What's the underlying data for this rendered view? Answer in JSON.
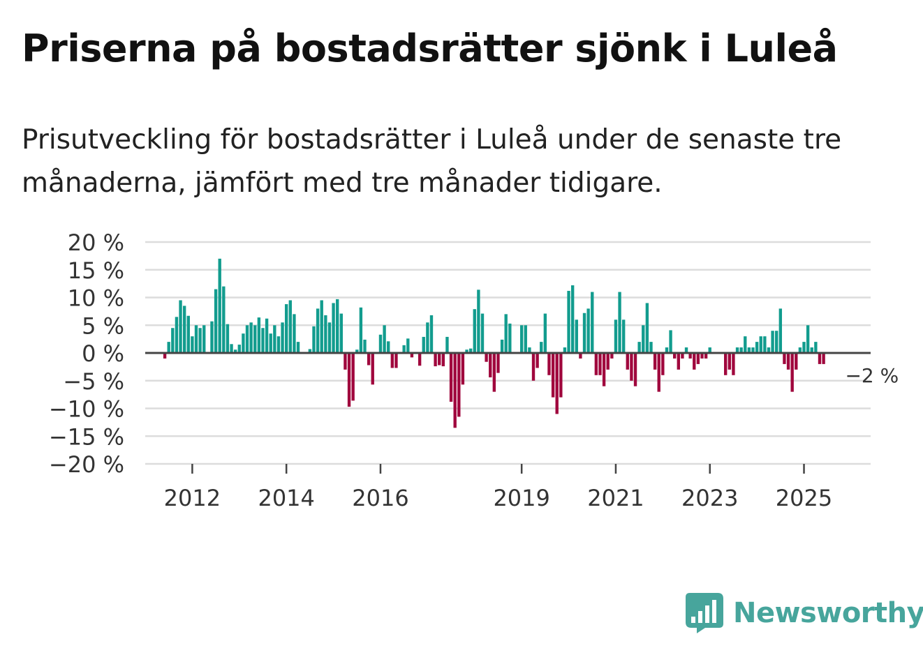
{
  "title": "Priserna på bostadsrätter sjönk i Luleå",
  "subtitle": "Prisutveckling för bostadsrätter i Luleå under de senaste tre månaderna, jämfört med tre månader tidigare.",
  "chart_data": {
    "type": "bar",
    "title": "Priserna på bostadsrätter sjönk i Luleå",
    "subtitle": "Prisutveckling för bostadsrätter i Luleå under de senaste tre månaderna, jämfört med tre månader tidigare.",
    "xlabel": "",
    "ylabel": "",
    "unit": "%",
    "ylim": [
      -20,
      20
    ],
    "yticks": [
      20,
      15,
      10,
      5,
      0,
      -5,
      -10,
      -15,
      -20
    ],
    "ytick_labels": [
      "20 %",
      "15 %",
      "10 %",
      "5 %",
      "0 %",
      "−5 %",
      "−10 %",
      "−15 %",
      "−20 %"
    ],
    "x_start": "2011-01",
    "x_end": "2026-06",
    "xticks": [
      {
        "label": "2012",
        "month": "2012-01"
      },
      {
        "label": "2014",
        "month": "2014-01"
      },
      {
        "label": "2016",
        "month": "2016-01"
      },
      {
        "label": "2019",
        "month": "2019-01"
      },
      {
        "label": "2021",
        "month": "2021-01"
      },
      {
        "label": "2023",
        "month": "2023-01"
      },
      {
        "label": "2025",
        "month": "2025-01"
      }
    ],
    "first_month": "2011-06",
    "values": [
      -1,
      2,
      4.5,
      6.5,
      9.5,
      8.5,
      6.7,
      3,
      5,
      4.5,
      5,
      0,
      5.7,
      11.5,
      17,
      12,
      5.2,
      1.6,
      0.6,
      1.5,
      3.5,
      5,
      5.5,
      5,
      6.4,
      4.5,
      6.2,
      3.5,
      5,
      3,
      5.5,
      8.8,
      9.5,
      7,
      2,
      0,
      0,
      0.7,
      4.8,
      8,
      9.5,
      6.8,
      5.5,
      9,
      9.7,
      7.1,
      -3,
      -9.7,
      -8.6,
      0.6,
      8.2,
      2.4,
      -2.2,
      -5.7,
      0,
      3.3,
      5,
      2.1,
      -2.7,
      -2.7,
      0,
      1.4,
      2.6,
      -0.8,
      0,
      -2.3,
      2.9,
      5.5,
      6.8,
      -2.4,
      -2.2,
      -2.4,
      2.9,
      -8.8,
      -13.5,
      -11.5,
      -5.7,
      0.6,
      0.8,
      7.9,
      11.4,
      7.1,
      -1.6,
      -4.4,
      -7,
      -3.6,
      2.4,
      7,
      5.3,
      0,
      0,
      5,
      5,
      1,
      -5,
      -2.7,
      2,
      7.1,
      -4,
      -8,
      -11,
      -8,
      1,
      11.2,
      12.2,
      6,
      -1,
      7.2,
      8,
      11,
      -4,
      -4,
      -6,
      -3,
      -1,
      6,
      11,
      6,
      -3,
      -5,
      -6,
      2,
      5,
      9,
      2,
      -3,
      -7,
      -4,
      1,
      4.1,
      -1,
      -3,
      -1,
      1,
      -1,
      -3,
      -2,
      -1,
      -1,
      1,
      0,
      0,
      0,
      -4,
      -3,
      -4,
      1,
      1,
      3,
      1,
      1,
      2,
      3,
      3,
      1,
      4,
      4,
      8,
      -2,
      -3,
      -7,
      -3,
      1,
      2,
      5,
      1,
      2,
      -2,
      -2
    ],
    "positive_color": "#129c8e",
    "negative_color": "#a0073d",
    "annotation": {
      "label": "−2 %",
      "month": "2025-09",
      "value": -2
    }
  },
  "brand": {
    "name": "Newsworthy",
    "icon": "newsworthy-logo-icon",
    "color": "#47a59c"
  }
}
